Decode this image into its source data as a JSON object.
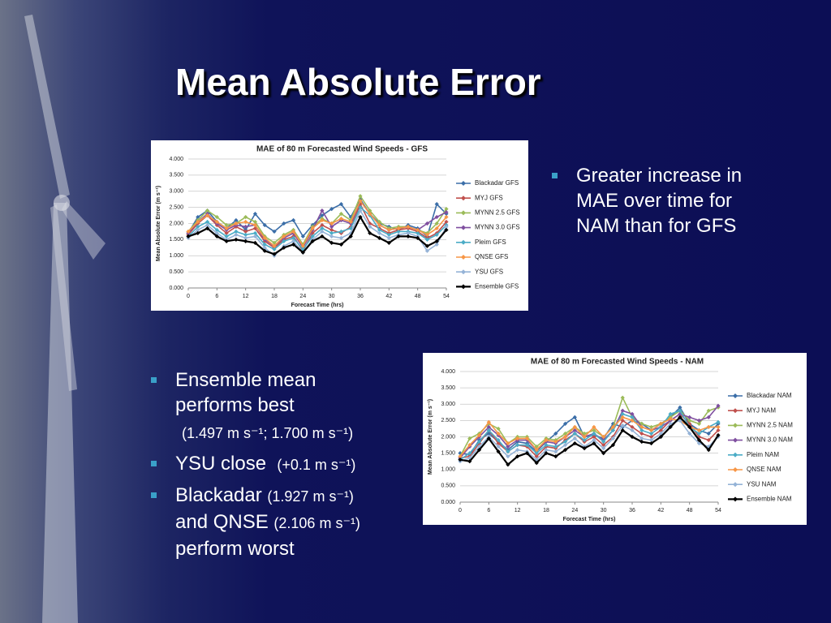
{
  "title": "Mean Absolute Error",
  "right_bullets": [
    "Greater increase in MAE over time for NAM than for GFS"
  ],
  "left_bullets": [
    {
      "text": "Ensemble mean performs best",
      "note": "(1.497 m s⁻¹; 1.700 m s⁻¹)"
    },
    {
      "text": "YSU close",
      "note": "(+0.1 m s⁻¹)"
    },
    {
      "text": "Blackadar",
      "note": "(1.927 m s⁻¹)",
      "text2": "and QNSE",
      "note2": "(2.106 m s⁻¹)",
      "text3": "perform worst"
    }
  ],
  "chart_data": [
    {
      "type": "line",
      "title": "MAE of 80 m Forecasted Wind Speeds - GFS",
      "x_label": "Forecast Time (hrs)",
      "y_label": "Mean Absolute Error (m s⁻¹)",
      "xlim": [
        0,
        54
      ],
      "xticks": [
        0,
        6,
        12,
        18,
        24,
        30,
        36,
        42,
        48,
        54
      ],
      "ylim": [
        0,
        4
      ],
      "yticks": [
        {
          "value": 0,
          "label": "0.000"
        },
        {
          "value": 0.5,
          "label": "0.500"
        },
        {
          "value": 1,
          "label": "1.000"
        },
        {
          "value": 1.5,
          "label": "1.500"
        },
        {
          "value": 2,
          "label": "2.000"
        },
        {
          "value": 2.5,
          "label": "2.500"
        },
        {
          "value": 3,
          "label": "3.000"
        },
        {
          "value": 3.5,
          "label": "3.500"
        },
        {
          "value": 4,
          "label": "4.000"
        }
      ],
      "grid": true,
      "x": [
        0,
        2,
        4,
        6,
        8,
        10,
        12,
        14,
        16,
        18,
        20,
        22,
        24,
        26,
        28,
        30,
        32,
        34,
        36,
        38,
        40,
        42,
        44,
        46,
        48,
        50,
        52,
        54
      ],
      "series": [
        {
          "name": "Blackadar GFS",
          "color": "#3b6ea8",
          "values": [
            1.7,
            2.2,
            2.4,
            2.05,
            1.85,
            2.1,
            1.8,
            2.3,
            1.95,
            1.75,
            2.0,
            2.1,
            1.6,
            1.95,
            2.25,
            2.45,
            2.6,
            2.2,
            2.75,
            2.3,
            2.0,
            1.9,
            1.8,
            1.95,
            1.85,
            1.6,
            2.6,
            2.3
          ]
        },
        {
          "name": "MYJ GFS",
          "color": "#c0504d",
          "values": [
            1.65,
            2.0,
            2.25,
            1.95,
            1.7,
            1.9,
            1.75,
            1.85,
            1.45,
            1.25,
            1.5,
            1.6,
            1.15,
            1.7,
            1.95,
            1.8,
            1.7,
            1.9,
            2.6,
            2.0,
            1.85,
            1.7,
            1.8,
            1.85,
            1.75,
            1.55,
            1.7,
            2.05
          ]
        },
        {
          "name": "MYNN 2.5 GFS",
          "color": "#9bbb59",
          "values": [
            1.75,
            2.1,
            2.4,
            2.2,
            1.95,
            2.0,
            2.2,
            2.05,
            1.6,
            1.4,
            1.65,
            1.8,
            1.35,
            1.9,
            2.15,
            2.0,
            2.3,
            2.1,
            2.85,
            2.4,
            2.05,
            1.85,
            1.9,
            1.9,
            1.8,
            1.7,
            2.0,
            2.45
          ]
        },
        {
          "name": "MYNN 3.0 GFS",
          "color": "#7f4f9f",
          "values": [
            1.7,
            2.05,
            2.3,
            2.0,
            1.8,
            1.95,
            1.9,
            1.95,
            1.5,
            1.3,
            1.55,
            1.7,
            1.25,
            1.8,
            2.4,
            1.9,
            2.1,
            2.0,
            2.7,
            2.3,
            1.95,
            1.8,
            1.85,
            1.9,
            1.8,
            2.0,
            2.2,
            2.35
          ]
        },
        {
          "name": "Pleim GFS",
          "color": "#4bacc6",
          "values": [
            1.6,
            1.9,
            2.05,
            1.8,
            1.6,
            1.75,
            1.65,
            1.7,
            1.35,
            1.2,
            1.45,
            1.55,
            1.2,
            1.6,
            1.85,
            1.7,
            1.75,
            1.85,
            2.5,
            2.25,
            1.8,
            1.65,
            1.75,
            1.75,
            1.7,
            1.5,
            1.65,
            1.95
          ]
        },
        {
          "name": "QNSE GFS",
          "color": "#f79646",
          "values": [
            1.75,
            2.05,
            2.25,
            2.05,
            1.85,
            2.0,
            2.05,
            1.95,
            1.55,
            1.3,
            1.6,
            1.75,
            1.3,
            1.85,
            2.1,
            2.0,
            2.15,
            2.05,
            2.7,
            2.3,
            1.95,
            1.8,
            1.85,
            1.9,
            1.8,
            1.65,
            1.85,
            2.2
          ]
        },
        {
          "name": "YSU GFS",
          "color": "#95b3d7",
          "values": [
            1.55,
            1.8,
            1.95,
            1.7,
            1.5,
            1.65,
            1.55,
            1.6,
            1.25,
            1.0,
            1.3,
            1.45,
            1.1,
            1.5,
            1.75,
            1.6,
            1.55,
            1.7,
            2.4,
            1.9,
            1.7,
            1.55,
            1.65,
            1.7,
            1.6,
            1.15,
            1.35,
            1.9
          ]
        },
        {
          "name": "Ensemble GFS",
          "color": "#000000",
          "values": [
            1.6,
            1.7,
            1.85,
            1.6,
            1.45,
            1.5,
            1.45,
            1.4,
            1.15,
            1.05,
            1.25,
            1.35,
            1.1,
            1.45,
            1.6,
            1.4,
            1.35,
            1.6,
            2.2,
            1.7,
            1.55,
            1.4,
            1.6,
            1.6,
            1.55,
            1.3,
            1.45,
            1.8
          ]
        }
      ]
    },
    {
      "type": "line",
      "title": "MAE of 80 m Forecasted Wind Speeds - NAM",
      "x_label": "Forecast Time (hrs)",
      "y_label": "Mean Absolute Error (m s⁻¹)",
      "xlim": [
        0,
        54
      ],
      "xticks": [
        0,
        6,
        12,
        18,
        24,
        30,
        36,
        42,
        48,
        54
      ],
      "ylim": [
        0,
        4
      ],
      "yticks": [
        {
          "value": 0,
          "label": "0.000"
        },
        {
          "value": 0.5,
          "label": "0.500"
        },
        {
          "value": 1,
          "label": "1.000"
        },
        {
          "value": 1.5,
          "label": "1.500"
        },
        {
          "value": 2,
          "label": "2.000"
        },
        {
          "value": 2.5,
          "label": "2.500"
        },
        {
          "value": 3,
          "label": "3.000"
        },
        {
          "value": 3.5,
          "label": "3.500"
        },
        {
          "value": 4,
          "label": "4.000"
        }
      ],
      "grid": true,
      "x": [
        0,
        2,
        4,
        6,
        8,
        10,
        12,
        14,
        16,
        18,
        20,
        22,
        24,
        26,
        28,
        30,
        32,
        34,
        36,
        38,
        40,
        42,
        44,
        46,
        48,
        50,
        52,
        54
      ],
      "series": [
        {
          "name": "Blackadar NAM",
          "color": "#3b6ea8",
          "values": [
            1.5,
            1.45,
            1.9,
            2.1,
            1.85,
            1.6,
            1.85,
            1.8,
            1.55,
            1.85,
            2.1,
            2.4,
            2.6,
            2.0,
            2.05,
            1.95,
            2.4,
            2.3,
            2.5,
            2.4,
            2.2,
            2.4,
            2.6,
            2.9,
            2.4,
            2.2,
            2.1,
            2.4
          ]
        },
        {
          "name": "MYJ NAM",
          "color": "#c0504d",
          "values": [
            1.35,
            1.4,
            1.8,
            2.2,
            1.8,
            1.55,
            1.75,
            1.7,
            1.4,
            1.7,
            1.65,
            1.9,
            2.1,
            1.85,
            2.0,
            1.75,
            2.0,
            2.5,
            2.3,
            2.1,
            2.0,
            2.2,
            2.5,
            2.7,
            2.4,
            2.0,
            1.9,
            2.2
          ]
        },
        {
          "name": "MYNN 2.5 NAM",
          "color": "#9bbb59",
          "values": [
            1.4,
            1.95,
            2.1,
            2.4,
            2.25,
            1.8,
            2.0,
            2.0,
            1.7,
            1.95,
            1.9,
            2.1,
            2.3,
            2.1,
            2.2,
            2.0,
            2.3,
            3.2,
            2.6,
            2.4,
            2.3,
            2.4,
            2.6,
            2.8,
            2.5,
            2.4,
            2.8,
            2.9
          ]
        },
        {
          "name": "MYNN 3.0 NAM",
          "color": "#7f4f9f",
          "values": [
            1.35,
            1.7,
            2.0,
            2.3,
            2.05,
            1.7,
            1.9,
            1.9,
            1.6,
            1.85,
            1.8,
            2.0,
            2.2,
            2.0,
            2.1,
            1.9,
            2.2,
            2.8,
            2.7,
            2.3,
            2.2,
            2.3,
            2.5,
            2.7,
            2.6,
            2.5,
            2.6,
            2.95
          ]
        },
        {
          "name": "Pleim NAM",
          "color": "#4bacc6",
          "values": [
            1.3,
            1.5,
            1.85,
            2.2,
            1.9,
            1.55,
            1.75,
            1.75,
            1.5,
            1.75,
            1.7,
            1.85,
            2.1,
            1.9,
            2.1,
            1.85,
            2.2,
            2.7,
            2.6,
            2.2,
            2.1,
            2.3,
            2.7,
            2.8,
            2.3,
            2.1,
            2.3,
            2.45
          ]
        },
        {
          "name": "QNSE NAM",
          "color": "#f79646",
          "values": [
            1.4,
            1.75,
            2.05,
            2.45,
            2.1,
            1.8,
            1.95,
            1.95,
            1.6,
            1.9,
            1.85,
            2.0,
            2.3,
            2.0,
            2.3,
            2.0,
            2.3,
            2.6,
            2.5,
            2.3,
            2.2,
            2.4,
            2.55,
            2.5,
            2.3,
            2.2,
            2.3,
            2.3
          ]
        },
        {
          "name": "YSU NAM",
          "color": "#95b3d7",
          "values": [
            1.25,
            1.35,
            1.7,
            2.0,
            1.7,
            1.4,
            1.6,
            1.55,
            1.3,
            1.6,
            1.55,
            1.75,
            1.95,
            1.7,
            1.9,
            1.65,
            1.95,
            2.35,
            2.2,
            1.95,
            1.9,
            2.1,
            2.4,
            2.5,
            2.1,
            1.8,
            1.7,
            2.0
          ]
        },
        {
          "name": "Ensemble NAM",
          "color": "#000000",
          "values": [
            1.3,
            1.25,
            1.6,
            1.95,
            1.55,
            1.15,
            1.4,
            1.5,
            1.2,
            1.5,
            1.4,
            1.6,
            1.8,
            1.65,
            1.8,
            1.5,
            1.75,
            2.2,
            2.0,
            1.85,
            1.8,
            2.0,
            2.3,
            2.6,
            2.3,
            1.9,
            1.6,
            2.05
          ]
        }
      ]
    }
  ]
}
